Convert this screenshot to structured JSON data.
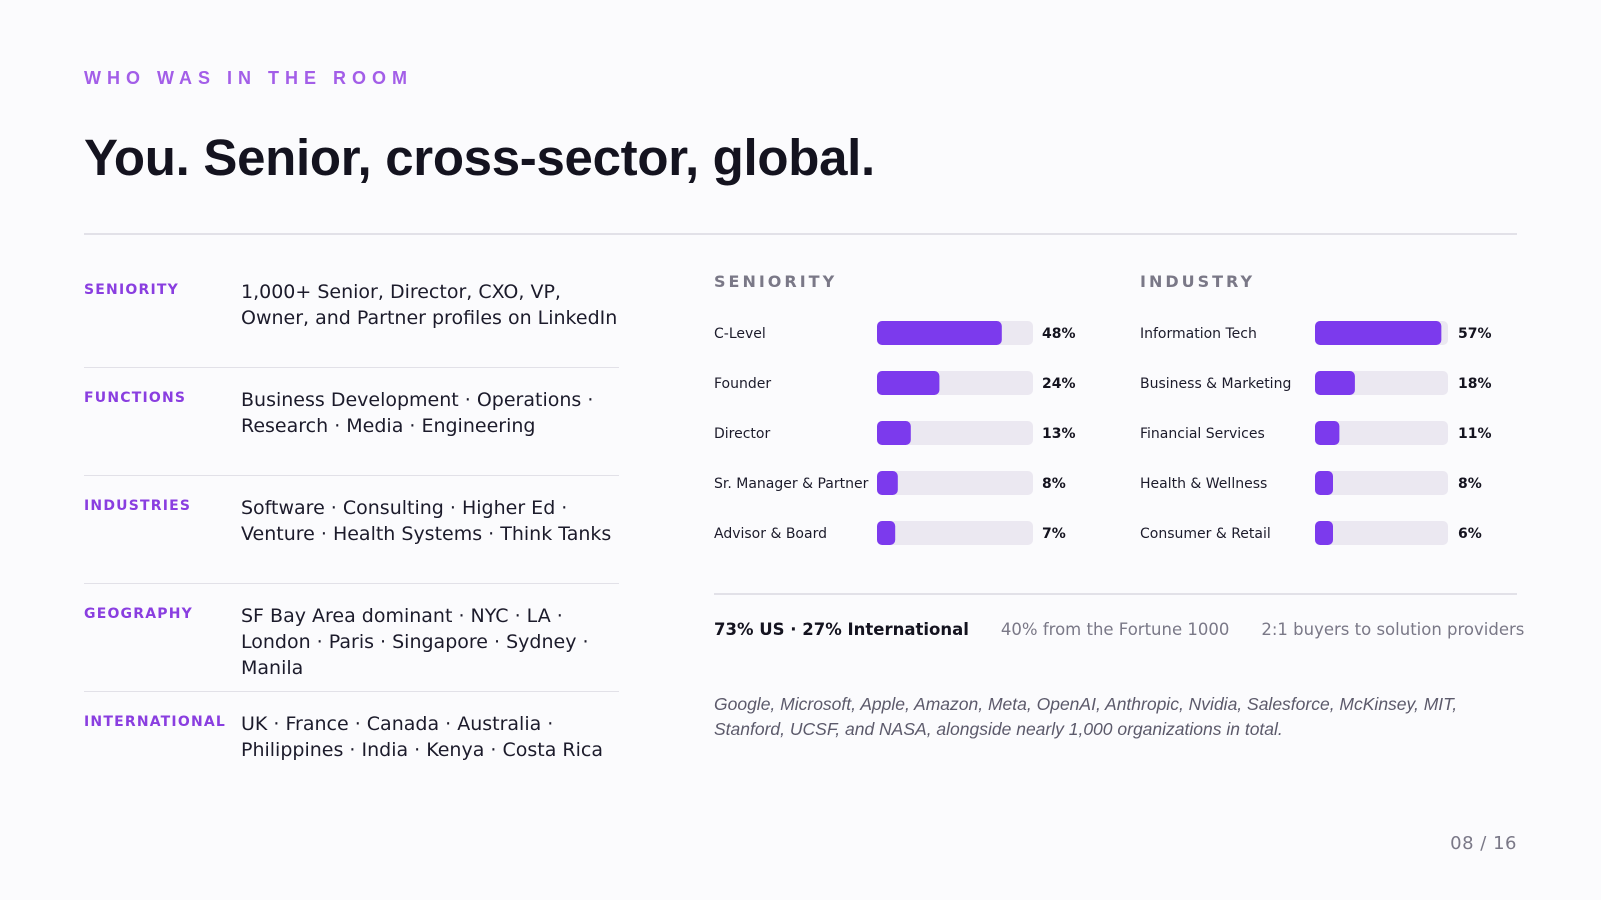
{
  "eyebrow": "WHO WAS IN THE ROOM",
  "headline": "You. Senior, cross-sector, global.",
  "facts": [
    {
      "label": "SENIORITY",
      "value": "1,000+ Senior, Director, CXO, VP, Owner, and Partner profiles on LinkedIn"
    },
    {
      "label": "FUNCTIONS",
      "value": "Business Development · Operations · Research · Media · Engineering"
    },
    {
      "label": "INDUSTRIES",
      "value": "Software · Consulting · Higher Ed · Venture · Health Systems · Think Tanks"
    },
    {
      "label": "GEOGRAPHY",
      "value": "SF Bay Area dominant · NYC · LA · London · Paris · Singapore · Sydney · Manila"
    },
    {
      "label": "INTERNATIONAL",
      "value": "UK · France · Canada · Australia · Philippines · India · Kenya · Costa Rica"
    }
  ],
  "chart_data": [
    {
      "type": "bar",
      "orientation": "horizontal",
      "title": "SENIORITY",
      "categories": [
        "C-Level",
        "Founder",
        "Director",
        "Sr. Manager & Partner",
        "Advisor & Board"
      ],
      "values": [
        48,
        24,
        13,
        8,
        7
      ],
      "value_labels": [
        "48%",
        "24%",
        "13%",
        "8%",
        "7%"
      ],
      "xlim": [
        0,
        60
      ],
      "grid": false,
      "colors": {
        "bar": "#7c3aed",
        "track": "#ebe8f1"
      }
    },
    {
      "type": "bar",
      "orientation": "horizontal",
      "title": "INDUSTRY",
      "categories": [
        "Information Tech",
        "Business & Marketing",
        "Financial Services",
        "Health & Wellness",
        "Consumer & Retail"
      ],
      "values": [
        57,
        18,
        11,
        8,
        6
      ],
      "value_labels": [
        "57%",
        "18%",
        "11%",
        "8%",
        "6%"
      ],
      "xlim": [
        0,
        60
      ],
      "grid": false,
      "colors": {
        "bar": "#7c3aed",
        "track": "#ebe8f1"
      }
    }
  ],
  "stats": {
    "geo_split": "73% US · 27% International",
    "fortune": "40% from the Fortune 1000",
    "ratio": "2:1 buyers to solution providers"
  },
  "orgs_note": "Google, Microsoft, Apple, Amazon, Meta, OpenAI, Anthropic, Nvidia, Salesforce, McKinsey, MIT, Stanford, UCSF, and NASA, alongside nearly 1,000 organizations in total.",
  "page_number": "08 / 16",
  "colors": {
    "accent": "#7c3aed",
    "eyebrow": "#a35ee8",
    "label": "#8a3ee0",
    "background": "#fbfbfd"
  }
}
